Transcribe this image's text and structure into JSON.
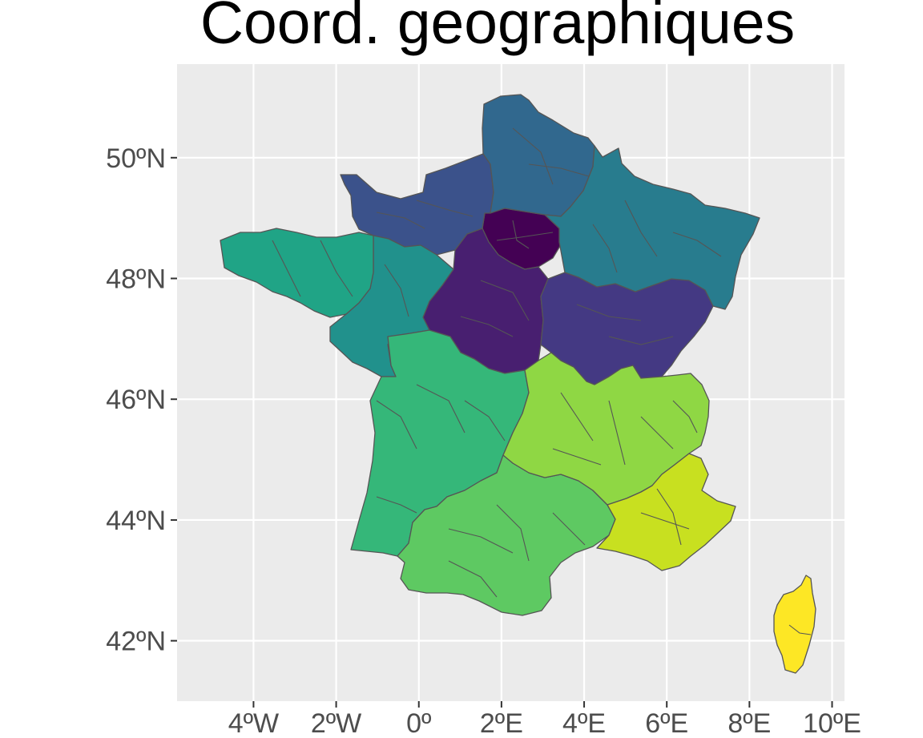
{
  "chart_data": {
    "type": "map",
    "title": "Coord. geographiques",
    "xlabel": "",
    "ylabel": "",
    "x_ticks": [
      {
        "value": -4,
        "label": "4ºW"
      },
      {
        "value": -2,
        "label": "2ºW"
      },
      {
        "value": 0,
        "label": "0º"
      },
      {
        "value": 2,
        "label": "2ºE"
      },
      {
        "value": 4,
        "label": "4ºE"
      },
      {
        "value": 6,
        "label": "6ºE"
      },
      {
        "value": 8,
        "label": "8ºE"
      },
      {
        "value": 10,
        "label": "10ºE"
      }
    ],
    "y_ticks": [
      {
        "value": 42,
        "label": "42ºN"
      },
      {
        "value": 44,
        "label": "44ºN"
      },
      {
        "value": 46,
        "label": "46ºN"
      },
      {
        "value": 48,
        "label": "48ºN"
      },
      {
        "value": 50,
        "label": "50ºN"
      }
    ],
    "xlim": [
      -5.85,
      10.3
    ],
    "ylim": [
      41.0,
      51.55
    ],
    "grid": true,
    "legend": "none",
    "panel_background": "#ebebeb",
    "palette": "viridis",
    "regions": [
      {
        "id": "ile-de-france",
        "color": "#440154"
      },
      {
        "id": "centre-val-de-loire",
        "color": "#481f70"
      },
      {
        "id": "bourgogne-franche-comte",
        "color": "#443983"
      },
      {
        "id": "normandie",
        "color": "#3b528b"
      },
      {
        "id": "hauts-de-france",
        "color": "#31688e"
      },
      {
        "id": "grand-est",
        "color": "#287c8e"
      },
      {
        "id": "pays-de-la-loire",
        "color": "#21918c"
      },
      {
        "id": "bretagne",
        "color": "#20a486"
      },
      {
        "id": "nouvelle-aquitaine",
        "color": "#35b779"
      },
      {
        "id": "occitanie",
        "color": "#5ec962"
      },
      {
        "id": "auvergne-rhone-alpes",
        "color": "#8fd744"
      },
      {
        "id": "provence-alpes-cote-d-azur",
        "color": "#c8e020"
      },
      {
        "id": "corse",
        "color": "#fde725"
      }
    ]
  }
}
